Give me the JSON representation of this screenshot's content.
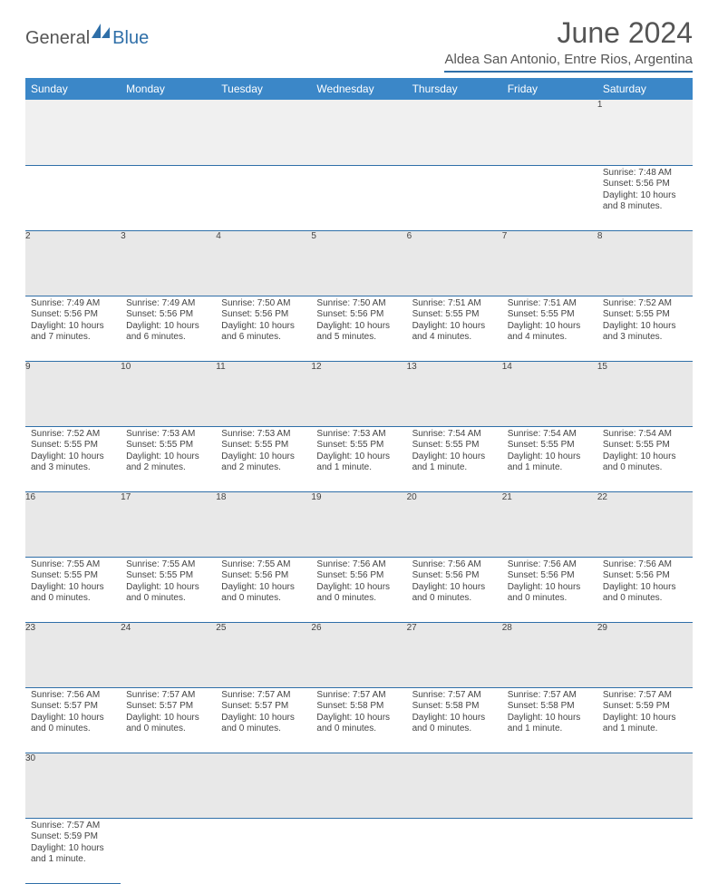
{
  "logo": {
    "part1": "General",
    "part2": "Blue"
  },
  "title": "June 2024",
  "location": "Aldea San Antonio, Entre Rios, Argentina",
  "colors": {
    "header_bg": "#3b87c8",
    "accent": "#2f6fa8",
    "daynum_bg": "#e8e8e8",
    "text": "#444444"
  },
  "weekdays": [
    "Sunday",
    "Monday",
    "Tuesday",
    "Wednesday",
    "Thursday",
    "Friday",
    "Saturday"
  ],
  "weeks": [
    [
      null,
      null,
      null,
      null,
      null,
      null,
      {
        "n": "1",
        "sr": "7:48 AM",
        "ss": "5:56 PM",
        "dl": "10 hours and 8 minutes."
      }
    ],
    [
      {
        "n": "2",
        "sr": "7:49 AM",
        "ss": "5:56 PM",
        "dl": "10 hours and 7 minutes."
      },
      {
        "n": "3",
        "sr": "7:49 AM",
        "ss": "5:56 PM",
        "dl": "10 hours and 6 minutes."
      },
      {
        "n": "4",
        "sr": "7:50 AM",
        "ss": "5:56 PM",
        "dl": "10 hours and 6 minutes."
      },
      {
        "n": "5",
        "sr": "7:50 AM",
        "ss": "5:56 PM",
        "dl": "10 hours and 5 minutes."
      },
      {
        "n": "6",
        "sr": "7:51 AM",
        "ss": "5:55 PM",
        "dl": "10 hours and 4 minutes."
      },
      {
        "n": "7",
        "sr": "7:51 AM",
        "ss": "5:55 PM",
        "dl": "10 hours and 4 minutes."
      },
      {
        "n": "8",
        "sr": "7:52 AM",
        "ss": "5:55 PM",
        "dl": "10 hours and 3 minutes."
      }
    ],
    [
      {
        "n": "9",
        "sr": "7:52 AM",
        "ss": "5:55 PM",
        "dl": "10 hours and 3 minutes."
      },
      {
        "n": "10",
        "sr": "7:53 AM",
        "ss": "5:55 PM",
        "dl": "10 hours and 2 minutes."
      },
      {
        "n": "11",
        "sr": "7:53 AM",
        "ss": "5:55 PM",
        "dl": "10 hours and 2 minutes."
      },
      {
        "n": "12",
        "sr": "7:53 AM",
        "ss": "5:55 PM",
        "dl": "10 hours and 1 minute."
      },
      {
        "n": "13",
        "sr": "7:54 AM",
        "ss": "5:55 PM",
        "dl": "10 hours and 1 minute."
      },
      {
        "n": "14",
        "sr": "7:54 AM",
        "ss": "5:55 PM",
        "dl": "10 hours and 1 minute."
      },
      {
        "n": "15",
        "sr": "7:54 AM",
        "ss": "5:55 PM",
        "dl": "10 hours and 0 minutes."
      }
    ],
    [
      {
        "n": "16",
        "sr": "7:55 AM",
        "ss": "5:55 PM",
        "dl": "10 hours and 0 minutes."
      },
      {
        "n": "17",
        "sr": "7:55 AM",
        "ss": "5:55 PM",
        "dl": "10 hours and 0 minutes."
      },
      {
        "n": "18",
        "sr": "7:55 AM",
        "ss": "5:56 PM",
        "dl": "10 hours and 0 minutes."
      },
      {
        "n": "19",
        "sr": "7:56 AM",
        "ss": "5:56 PM",
        "dl": "10 hours and 0 minutes."
      },
      {
        "n": "20",
        "sr": "7:56 AM",
        "ss": "5:56 PM",
        "dl": "10 hours and 0 minutes."
      },
      {
        "n": "21",
        "sr": "7:56 AM",
        "ss": "5:56 PM",
        "dl": "10 hours and 0 minutes."
      },
      {
        "n": "22",
        "sr": "7:56 AM",
        "ss": "5:56 PM",
        "dl": "10 hours and 0 minutes."
      }
    ],
    [
      {
        "n": "23",
        "sr": "7:56 AM",
        "ss": "5:57 PM",
        "dl": "10 hours and 0 minutes."
      },
      {
        "n": "24",
        "sr": "7:57 AM",
        "ss": "5:57 PM",
        "dl": "10 hours and 0 minutes."
      },
      {
        "n": "25",
        "sr": "7:57 AM",
        "ss": "5:57 PM",
        "dl": "10 hours and 0 minutes."
      },
      {
        "n": "26",
        "sr": "7:57 AM",
        "ss": "5:58 PM",
        "dl": "10 hours and 0 minutes."
      },
      {
        "n": "27",
        "sr": "7:57 AM",
        "ss": "5:58 PM",
        "dl": "10 hours and 0 minutes."
      },
      {
        "n": "28",
        "sr": "7:57 AM",
        "ss": "5:58 PM",
        "dl": "10 hours and 1 minute."
      },
      {
        "n": "29",
        "sr": "7:57 AM",
        "ss": "5:59 PM",
        "dl": "10 hours and 1 minute."
      }
    ],
    [
      {
        "n": "30",
        "sr": "7:57 AM",
        "ss": "5:59 PM",
        "dl": "10 hours and 1 minute."
      },
      null,
      null,
      null,
      null,
      null,
      null
    ]
  ],
  "labels": {
    "sunrise": "Sunrise:",
    "sunset": "Sunset:",
    "daylight": "Daylight:"
  }
}
